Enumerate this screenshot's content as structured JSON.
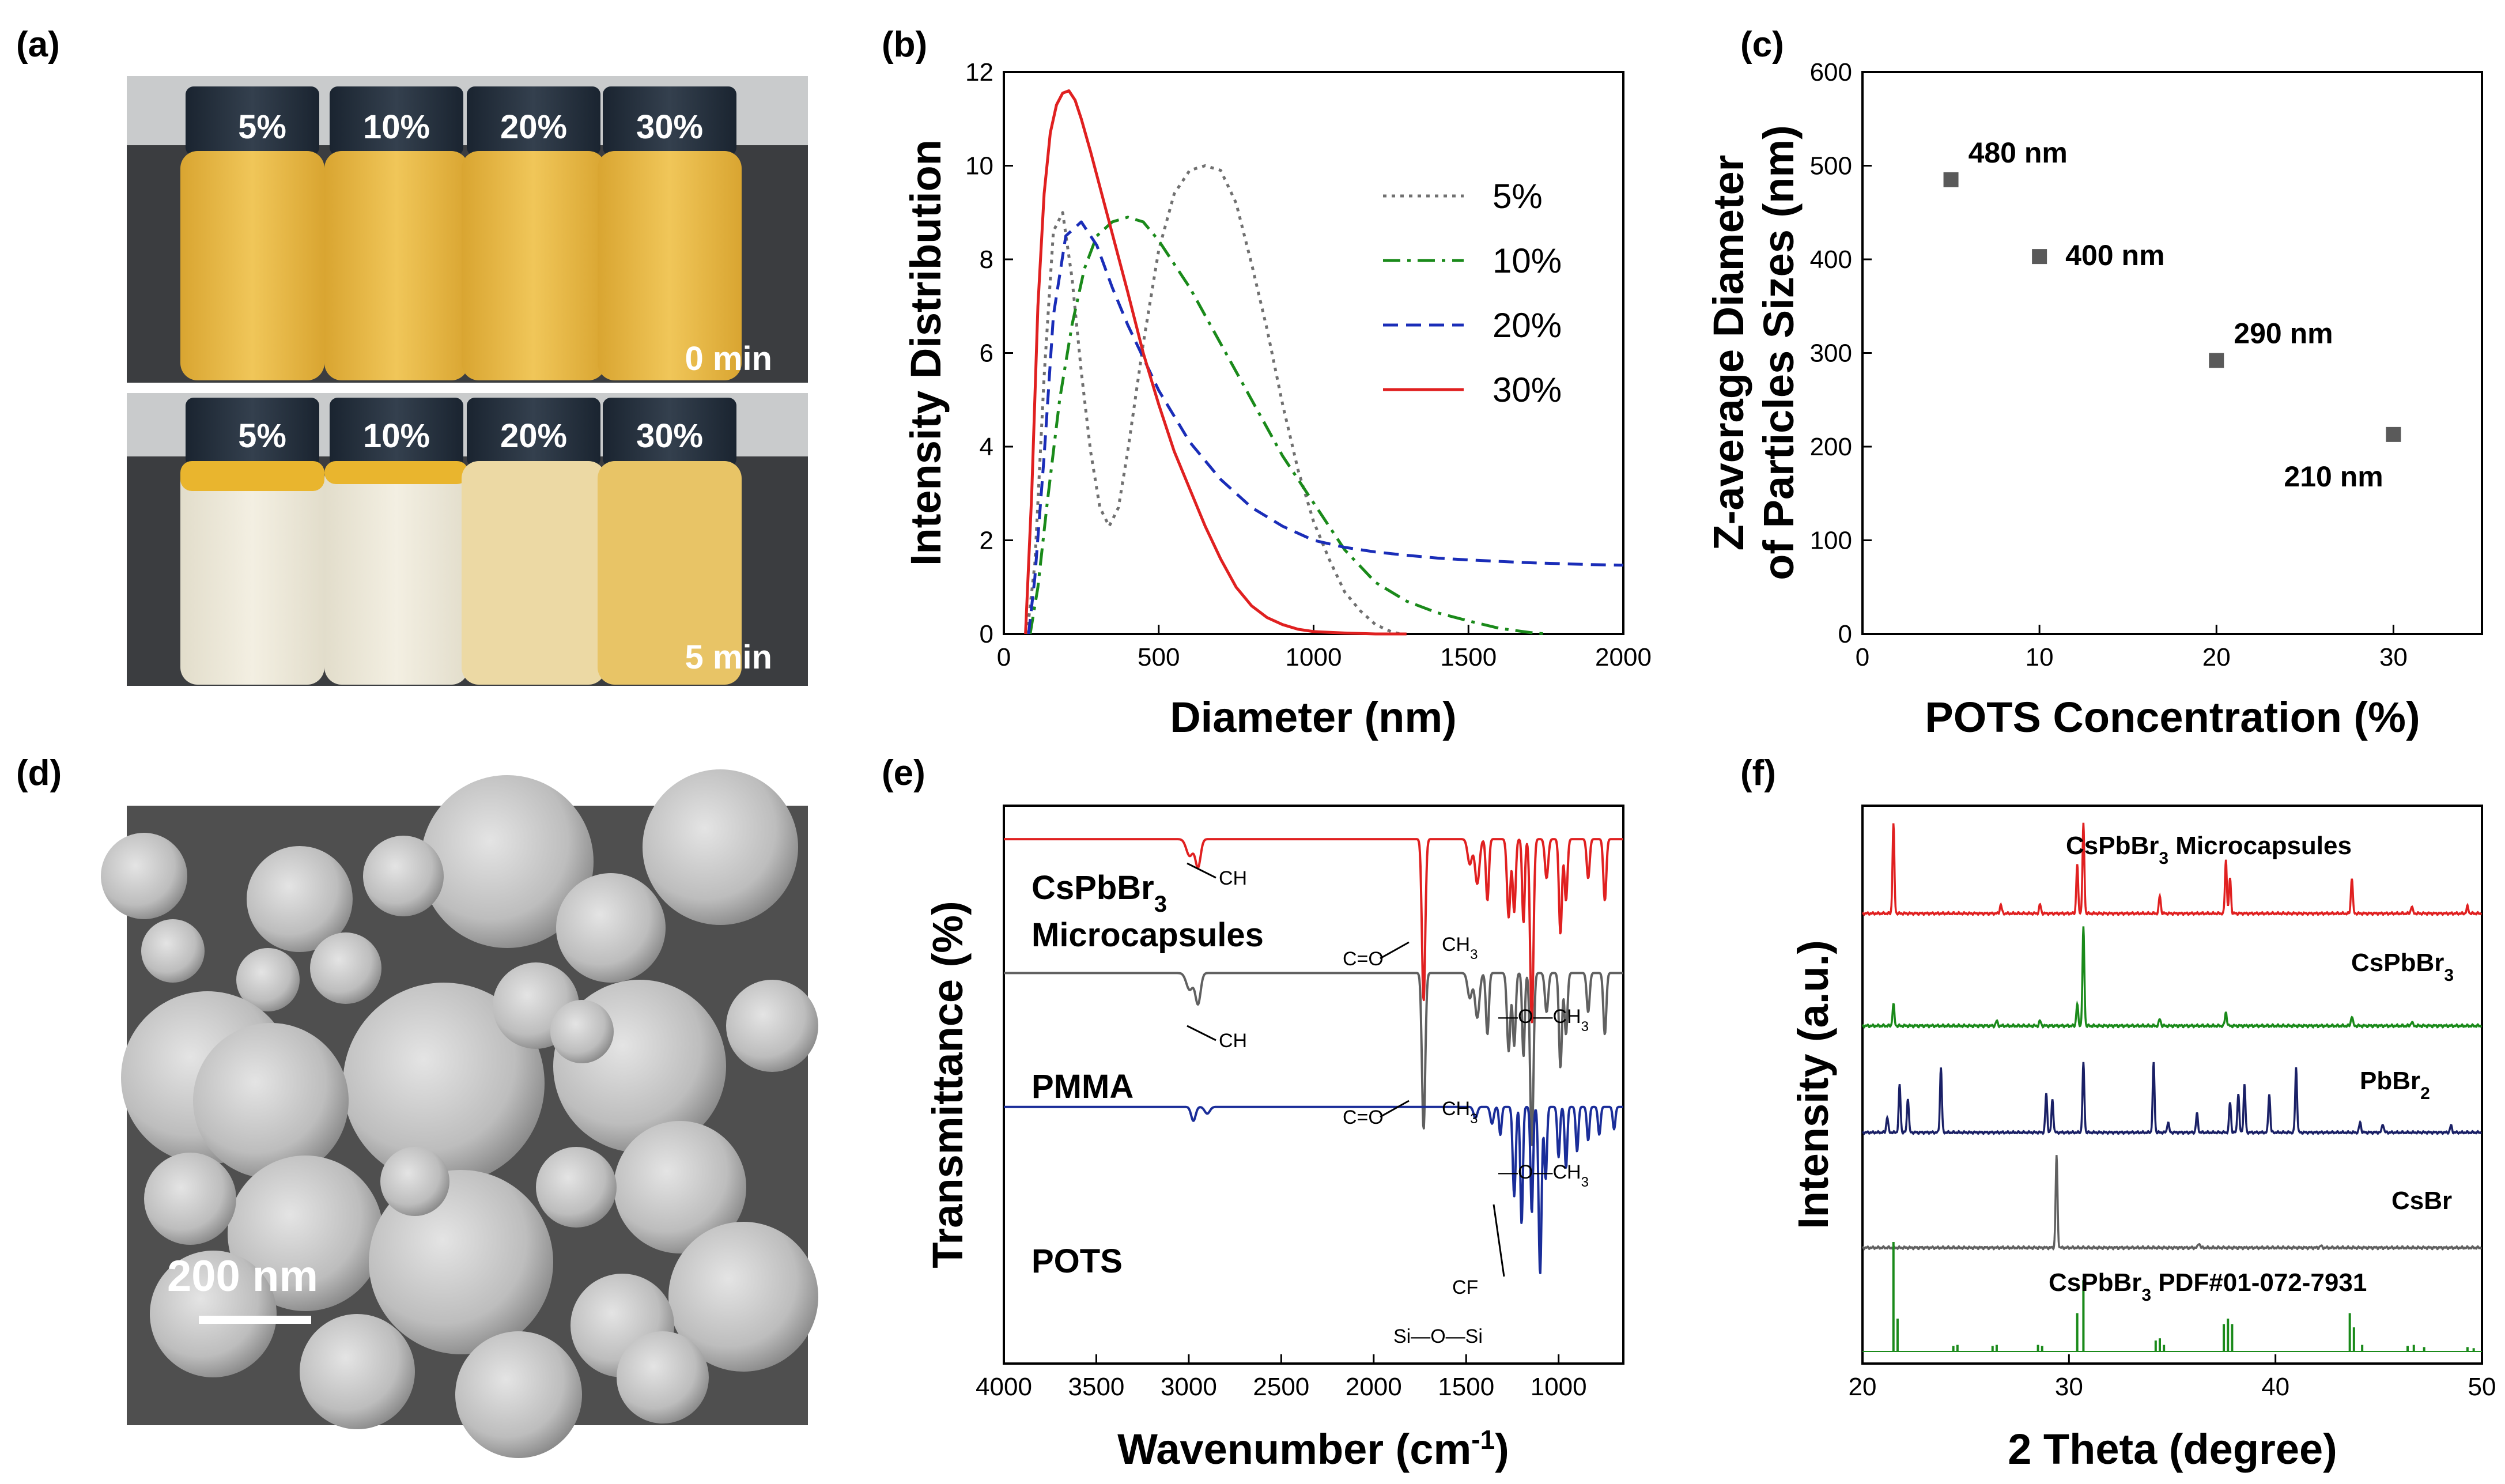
{
  "panel_labels": {
    "a": "(a)",
    "b": "(b)",
    "c": "(c)",
    "d": "(d)",
    "e": "(e)",
    "f": "(f)"
  },
  "photos": {
    "vial_labels": [
      "5%",
      "10%",
      "20%",
      "30%"
    ],
    "time_top": "0 min",
    "time_bottom": "5 min",
    "scale_bar": "200 nm",
    "colors": {
      "amber": "#e6b43a",
      "pale": "#ece7d6",
      "cap": "#1f2a36",
      "bg_dark": "#3a3c3e",
      "sem_bg": "#5a5a5a"
    }
  },
  "chart_data": [
    {
      "id": "b",
      "type": "line",
      "title": "",
      "xlabel": "Diameter (nm)",
      "ylabel": "Intensity Distribution",
      "xlim": [
        0,
        2000
      ],
      "ylim": [
        0,
        12
      ],
      "xticks": [
        0,
        500,
        1000,
        1500,
        2000
      ],
      "yticks": [
        0,
        2,
        4,
        6,
        8,
        10,
        12
      ],
      "legend_position": "top-right",
      "series": [
        {
          "name": "5%",
          "color": "#707070",
          "style": "dotted",
          "x": [
            75,
            100,
            130,
            160,
            190,
            220,
            250,
            280,
            310,
            340,
            370,
            400,
            450,
            500,
            550,
            600,
            650,
            700,
            750,
            800,
            850,
            900,
            950,
            1000,
            1050,
            1100,
            1150,
            1200,
            1250,
            1280
          ],
          "y": [
            0,
            1.5,
            5.5,
            8.6,
            9.0,
            7.6,
            5.6,
            3.9,
            2.7,
            2.3,
            2.7,
            3.9,
            6.2,
            8.2,
            9.4,
            9.9,
            10.0,
            9.9,
            9.2,
            7.9,
            6.5,
            4.9,
            3.5,
            2.4,
            1.6,
            0.9,
            0.5,
            0.2,
            0.05,
            0
          ]
        },
        {
          "name": "10%",
          "color": "#1a8a1a",
          "style": "dash-dot",
          "x": [
            85,
            110,
            140,
            180,
            220,
            260,
            300,
            350,
            400,
            450,
            500,
            600,
            700,
            800,
            900,
            1000,
            1100,
            1200,
            1300,
            1400,
            1500,
            1600,
            1700,
            1750
          ],
          "y": [
            0,
            1.0,
            2.8,
            5.0,
            6.6,
            7.8,
            8.5,
            8.8,
            8.9,
            8.8,
            8.4,
            7.4,
            6.2,
            5.0,
            3.8,
            2.8,
            1.8,
            1.1,
            0.7,
            0.45,
            0.28,
            0.12,
            0.03,
            0
          ]
        },
        {
          "name": "20%",
          "color": "#1a2db8",
          "style": "dashed",
          "x": [
            80,
            100,
            130,
            160,
            200,
            250,
            300,
            350,
            400,
            500,
            600,
            700,
            800,
            900,
            1000,
            1100,
            1200,
            1300,
            1400,
            1500,
            1600,
            1700,
            1800,
            1900,
            2000
          ],
          "y": [
            0,
            1.2,
            3.8,
            6.8,
            8.5,
            8.8,
            8.3,
            7.4,
            6.6,
            5.2,
            4.1,
            3.3,
            2.7,
            2.3,
            2.0,
            1.85,
            1.75,
            1.68,
            1.62,
            1.58,
            1.55,
            1.52,
            1.5,
            1.48,
            1.47
          ]
        },
        {
          "name": "30%",
          "color": "#e02020",
          "style": "solid",
          "x": [
            70,
            90,
            110,
            130,
            150,
            170,
            190,
            210,
            230,
            250,
            280,
            320,
            360,
            400,
            450,
            500,
            550,
            600,
            650,
            700,
            750,
            800,
            850,
            900,
            950,
            1000,
            1100,
            1200,
            1300
          ],
          "y": [
            0,
            3.0,
            7.0,
            9.4,
            10.7,
            11.3,
            11.55,
            11.6,
            11.4,
            11.0,
            10.3,
            9.3,
            8.3,
            7.3,
            6.0,
            4.9,
            3.9,
            3.1,
            2.3,
            1.6,
            1.0,
            0.6,
            0.35,
            0.2,
            0.1,
            0.05,
            0.02,
            0,
            0
          ]
        }
      ]
    },
    {
      "id": "c",
      "type": "scatter",
      "xlabel": "POTS Concentration (%)",
      "ylabel_line1": "Z-average Diameter",
      "ylabel_line2": "of Particles Sizes (nm)",
      "xlim": [
        0,
        35
      ],
      "ylim": [
        0,
        600
      ],
      "xticks": [
        0,
        10,
        20,
        30
      ],
      "yticks": [
        0,
        100,
        200,
        300,
        400,
        500,
        600
      ],
      "color": "#5a5a5a",
      "points": [
        {
          "x": 5,
          "y": 485,
          "label": "480 nm",
          "label_pos": "upper-right"
        },
        {
          "x": 10,
          "y": 403,
          "label": "400 nm",
          "label_pos": "right"
        },
        {
          "x": 20,
          "y": 292,
          "label": "290 nm",
          "label_pos": "upper-right"
        },
        {
          "x": 30,
          "y": 213,
          "label": "210 nm",
          "label_pos": "below"
        }
      ]
    },
    {
      "id": "e",
      "type": "line",
      "xlabel": "Wavenumber (cm",
      "xlabel_sup": "-1",
      "xlabel_end": ")",
      "ylabel": "Transmittance (%)",
      "xlim": [
        4000,
        650
      ],
      "xticks": [
        4000,
        3500,
        3000,
        2500,
        2000,
        1500,
        1000
      ],
      "series": [
        {
          "name_line1": "CsPbBr",
          "name_sub": "3",
          "name_line2": "Microcapsules",
          "color": "#e02020",
          "offset_key": "top",
          "baseline": 0.06,
          "dips": [
            [
              2995,
              0.03,
              18
            ],
            [
              2950,
              0.05,
              14
            ],
            [
              1730,
              0.29,
              9
            ],
            [
              1480,
              0.045,
              12
            ],
            [
              1440,
              0.08,
              12
            ],
            [
              1385,
              0.11,
              8
            ],
            [
              1270,
              0.14,
              9
            ],
            [
              1240,
              0.13,
              8
            ],
            [
              1190,
              0.15,
              7
            ],
            [
              1145,
              0.33,
              9
            ],
            [
              1065,
              0.07,
              9
            ],
            [
              990,
              0.17,
              8
            ],
            [
              960,
              0.11,
              8
            ],
            [
              840,
              0.07,
              8
            ],
            [
              750,
              0.11,
              8
            ]
          ]
        },
        {
          "name_line1": "PMMA",
          "color": "#606060",
          "offset_key": "middle",
          "baseline": 0.3,
          "dips": [
            [
              2995,
              0.03,
              18
            ],
            [
              2950,
              0.055,
              14
            ],
            [
              1730,
              0.28,
              9
            ],
            [
              1480,
              0.045,
              12
            ],
            [
              1440,
              0.08,
              12
            ],
            [
              1385,
              0.11,
              8
            ],
            [
              1270,
              0.14,
              9
            ],
            [
              1240,
              0.13,
              8
            ],
            [
              1190,
              0.15,
              7
            ],
            [
              1145,
              0.31,
              9
            ],
            [
              1065,
              0.07,
              9
            ],
            [
              990,
              0.17,
              8
            ],
            [
              960,
              0.11,
              8
            ],
            [
              840,
              0.07,
              8
            ],
            [
              750,
              0.11,
              8
            ]
          ]
        },
        {
          "name_line1": "POTS",
          "color": "#1a2d99",
          "offset_key": "bottom",
          "baseline": 0.54,
          "dips": [
            [
              2975,
              0.025,
              12
            ],
            [
              2900,
              0.012,
              14
            ],
            [
              1450,
              0.02,
              10
            ],
            [
              1360,
              0.03,
              9
            ],
            [
              1315,
              0.05,
              7
            ],
            [
              1240,
              0.16,
              8
            ],
            [
              1200,
              0.21,
              7
            ],
            [
              1145,
              0.19,
              7
            ],
            [
              1100,
              0.3,
              8
            ],
            [
              1070,
              0.13,
              7
            ],
            [
              1000,
              0.09,
              7
            ],
            [
              960,
              0.11,
              7
            ],
            [
              900,
              0.08,
              7
            ],
            [
              840,
              0.06,
              7
            ],
            [
              780,
              0.05,
              7
            ],
            [
              700,
              0.04,
              7
            ]
          ]
        }
      ],
      "group_labels": {
        "ch": "CH",
        "co": "C=O",
        "ch3": "CH",
        "ch3_sub": "3",
        "och3": "—O—CH",
        "och3_sub": "3",
        "cf": "CF",
        "sios": "Si—O—Si"
      }
    },
    {
      "id": "f",
      "type": "line",
      "xlabel": "2 Theta (degree)",
      "ylabel": "Intensity (a.u.)",
      "xlim": [
        20,
        50
      ],
      "xticks": [
        20,
        30,
        40,
        50
      ],
      "series": [
        {
          "name": "CsPbBr",
          "name_sub": "3",
          "name_tail": " Microcapsules",
          "color": "#e02020",
          "style": "line",
          "peaks": [
            [
              21.5,
              1.0
            ],
            [
              26.7,
              0.1
            ],
            [
              28.6,
              0.1
            ],
            [
              30.4,
              0.55
            ],
            [
              30.7,
              1.0
            ],
            [
              34.4,
              0.2
            ],
            [
              37.6,
              0.6
            ],
            [
              37.8,
              0.4
            ],
            [
              43.7,
              0.4
            ],
            [
              46.6,
              0.08
            ],
            [
              49.3,
              0.08
            ]
          ]
        },
        {
          "name": "CsPbBr",
          "name_sub": "3",
          "name_tail": "",
          "color": "#1a8a1a",
          "style": "line",
          "peaks": [
            [
              21.5,
              0.22
            ],
            [
              26.5,
              0.05
            ],
            [
              28.6,
              0.05
            ],
            [
              30.4,
              0.22
            ],
            [
              30.7,
              1.0
            ],
            [
              34.4,
              0.07
            ],
            [
              37.6,
              0.14
            ],
            [
              43.7,
              0.1
            ],
            [
              46.6,
              0.04
            ]
          ]
        },
        {
          "name": "PbBr",
          "name_sub": "2",
          "name_tail": "",
          "color": "#1a2066",
          "style": "line",
          "peaks": [
            [
              21.2,
              0.18
            ],
            [
              21.8,
              0.55
            ],
            [
              22.2,
              0.4
            ],
            [
              23.8,
              0.75
            ],
            [
              28.9,
              0.45
            ],
            [
              29.2,
              0.38
            ],
            [
              30.7,
              0.8
            ],
            [
              34.1,
              0.8
            ],
            [
              34.8,
              0.12
            ],
            [
              36.2,
              0.22
            ],
            [
              37.8,
              0.35
            ],
            [
              38.2,
              0.45
            ],
            [
              38.5,
              0.55
            ],
            [
              39.7,
              0.45
            ],
            [
              41.0,
              0.75
            ],
            [
              44.1,
              0.12
            ],
            [
              45.2,
              0.1
            ],
            [
              48.5,
              0.08
            ]
          ]
        },
        {
          "name": "CsBr",
          "name_sub": "",
          "name_tail": "",
          "color": "#606060",
          "style": "line",
          "peaks": [
            [
              29.4,
              1.0
            ],
            [
              36.3,
              0.05
            ],
            [
              42.2,
              0.02
            ]
          ]
        },
        {
          "name": "CsPbBr",
          "name_sub": "3",
          "name_tail": "  PDF#01-072-7931",
          "color": "#1a8a1a",
          "style": "sticks",
          "peaks": [
            [
              21.5,
              1.0
            ],
            [
              21.7,
              0.3
            ],
            [
              24.4,
              0.05
            ],
            [
              24.6,
              0.06
            ],
            [
              26.3,
              0.05
            ],
            [
              26.5,
              0.06
            ],
            [
              28.5,
              0.06
            ],
            [
              28.7,
              0.05
            ],
            [
              30.4,
              0.35
            ],
            [
              30.7,
              0.65
            ],
            [
              34.2,
              0.1
            ],
            [
              34.4,
              0.12
            ],
            [
              34.6,
              0.06
            ],
            [
              37.5,
              0.25
            ],
            [
              37.7,
              0.3
            ],
            [
              37.9,
              0.25
            ],
            [
              43.6,
              0.35
            ],
            [
              43.8,
              0.22
            ],
            [
              44.2,
              0.06
            ],
            [
              46.4,
              0.05
            ],
            [
              46.7,
              0.06
            ],
            [
              47.2,
              0.04
            ],
            [
              49.3,
              0.04
            ],
            [
              49.6,
              0.03
            ]
          ]
        }
      ]
    }
  ]
}
